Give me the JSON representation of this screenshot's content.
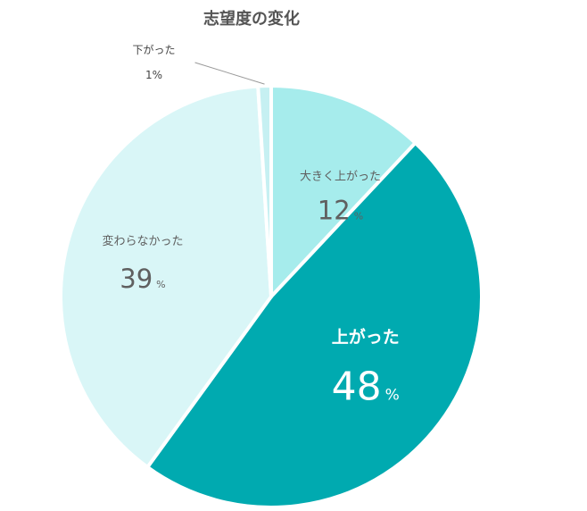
{
  "chart_data": {
    "type": "pie",
    "title": "志望度の変化",
    "slices": [
      {
        "label": "大きく上がった",
        "value": 12,
        "unit": "%",
        "color": "#a6ecec",
        "text_color": "#606060"
      },
      {
        "label": "上がった",
        "value": 48,
        "unit": "%",
        "color": "#00aab0",
        "text_color": "#ffffff"
      },
      {
        "label": "変わらなかった",
        "value": 39,
        "unit": "%",
        "color": "#d9f6f7",
        "text_color": "#606060"
      },
      {
        "label": "下がった",
        "value": 1,
        "unit": "%",
        "color": "#c6f0f2",
        "text_color": "#444444"
      }
    ],
    "start_angle": "12 o'clock",
    "direction": "clockwise",
    "legend": "none"
  }
}
